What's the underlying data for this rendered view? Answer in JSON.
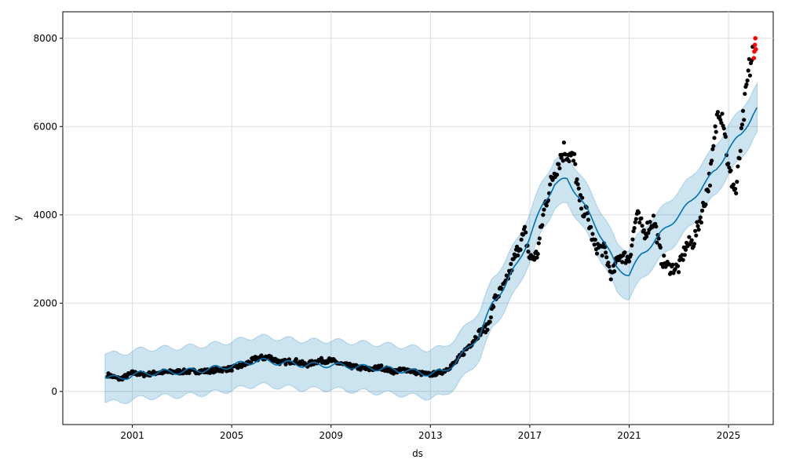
{
  "chart_data": {
    "type": "line",
    "title": "",
    "xlabel": "ds",
    "ylabel": "y",
    "xlim": [
      1998.2,
      2026.8
    ],
    "ylim": [
      -750,
      8600
    ],
    "x_ticks": [
      2001,
      2005,
      2009,
      2013,
      2017,
      2021,
      2025
    ],
    "x_tick_labels": [
      "2001",
      "2005",
      "2009",
      "2013",
      "2017",
      "2021",
      "2025"
    ],
    "y_ticks": [
      0,
      2000,
      4000,
      6000,
      8000
    ],
    "y_tick_labels": [
      "0",
      "2000",
      "4000",
      "6000",
      "8000"
    ],
    "grid": true,
    "colors": {
      "actual": "#000000",
      "test": "#ff0000",
      "forecast": "#0072B2",
      "band": "#0072B2"
    },
    "series": [
      {
        "name": "actual",
        "x": [
          2000.0,
          2000.5,
          2001.0,
          2001.5,
          2002.0,
          2003.0,
          2004.0,
          2005.0,
          2005.5,
          2006.0,
          2006.5,
          2007.0,
          2007.5,
          2008.0,
          2008.5,
          2009.0,
          2009.5,
          2010.0,
          2010.5,
          2011.0,
          2011.5,
          2012.0,
          2012.5,
          2013.0,
          2013.5,
          2014.0,
          2014.5,
          2015.0,
          2015.3,
          2015.6,
          2016.0,
          2016.5,
          2016.8,
          2017.0,
          2017.3,
          2017.6,
          2018.0,
          2018.4,
          2018.8,
          2019.0,
          2019.3,
          2019.6,
          2020.0,
          2020.3,
          2020.6,
          2021.0,
          2021.3,
          2021.6,
          2022.0,
          2022.3,
          2022.6,
          2023.0,
          2023.3,
          2023.6,
          2024.0,
          2024.3,
          2024.6,
          2024.8,
          2025.0,
          2025.3,
          2025.6,
          2025.8,
          2026.0
        ],
        "y": [
          380,
          280,
          420,
          380,
          430,
          450,
          460,
          520,
          600,
          750,
          780,
          650,
          700,
          600,
          700,
          700,
          600,
          550,
          500,
          550,
          450,
          500,
          420,
          380,
          450,
          650,
          1000,
          1350,
          1450,
          2100,
          2400,
          3200,
          3600,
          3000,
          3100,
          4200,
          5000,
          5500,
          5200,
          4300,
          4000,
          3300,
          3200,
          2600,
          3100,
          3000,
          4000,
          3600,
          3900,
          3000,
          2800,
          2800,
          3300,
          3400,
          4200,
          5000,
          6500,
          6200,
          5000,
          4500,
          6200,
          7200,
          7700
        ]
      },
      {
        "name": "test",
        "x": [
          2026.02,
          2026.04,
          2026.06,
          2026.08,
          2026.1
        ],
        "y": [
          7550,
          7700,
          7850,
          8000,
          7750
        ]
      },
      {
        "name": "yhat",
        "x": [
          1999.9,
          2000.5,
          2001.0,
          2002.0,
          2003.0,
          2004.0,
          2005.0,
          2006.0,
          2007.0,
          2008.0,
          2009.0,
          2010.0,
          2011.0,
          2012.0,
          2013.0,
          2013.5,
          2014.0,
          2015.0,
          2015.5,
          2016.0,
          2016.5,
          2017.0,
          2017.5,
          2018.0,
          2018.5,
          2019.0,
          2019.5,
          2020.0,
          2020.5,
          2021.0,
          2021.5,
          2022.0,
          2022.5,
          2023.0,
          2023.5,
          2024.0,
          2024.5,
          2025.0,
          2025.5,
          2026.0,
          2026.15
        ],
        "y": [
          350,
          280,
          380,
          430,
          450,
          500,
          580,
          700,
          650,
          600,
          600,
          560,
          520,
          470,
          400,
          450,
          650,
          1300,
          2000,
          2400,
          2900,
          3500,
          4200,
          4700,
          4800,
          4400,
          3900,
          3400,
          2800,
          2650,
          3100,
          3400,
          3700,
          4000,
          4300,
          4700,
          5000,
          5500,
          5800,
          6300,
          6400
        ],
        "uncertainty": 550
      }
    ]
  }
}
